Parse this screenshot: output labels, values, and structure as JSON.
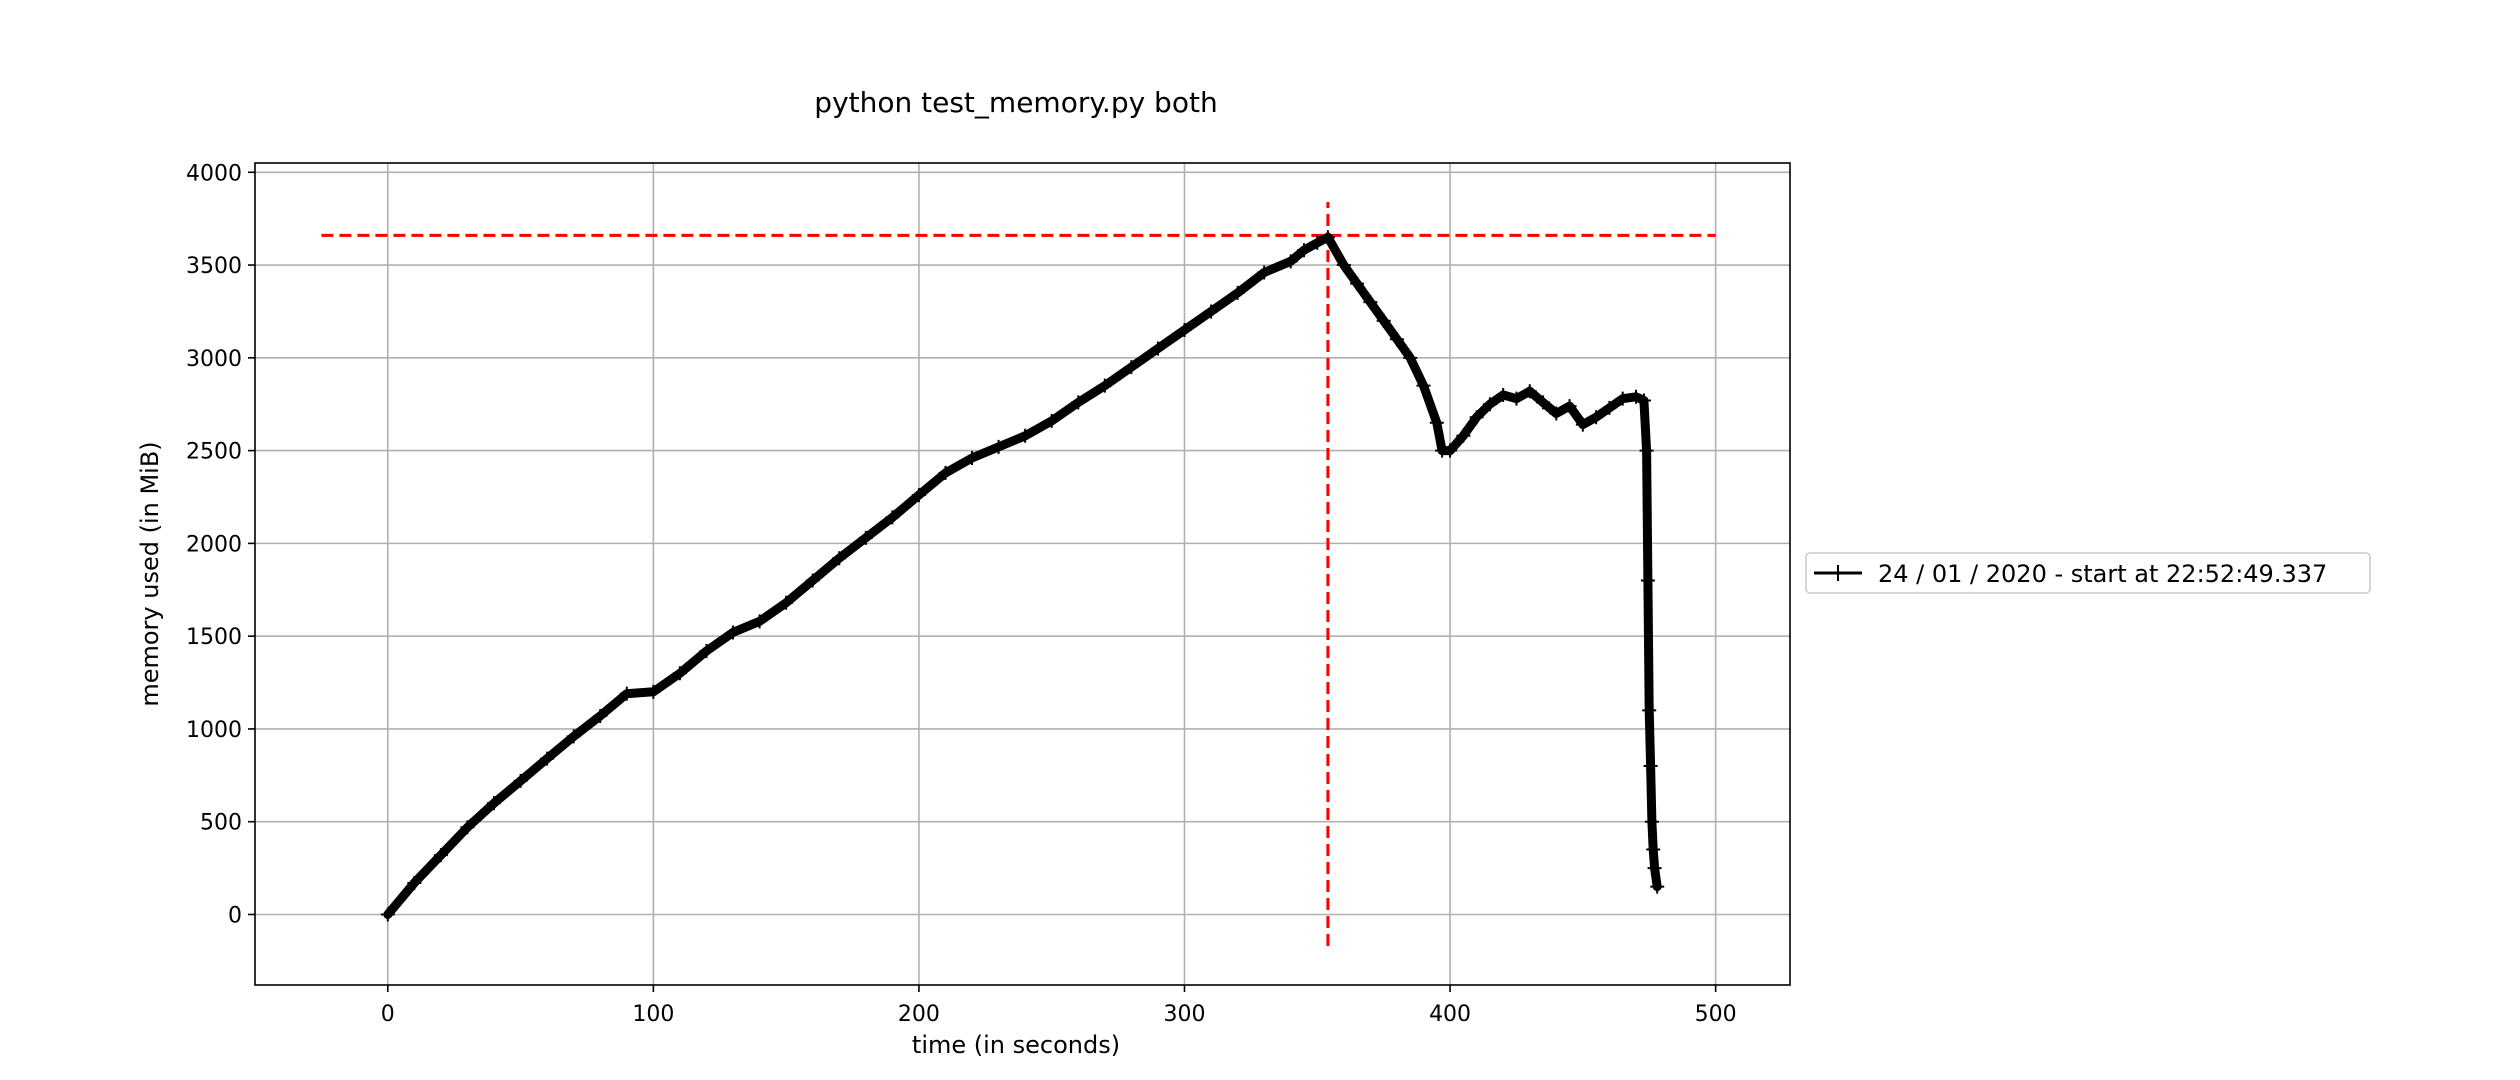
{
  "chart_data": {
    "type": "line",
    "title": "python test_memory.py both",
    "xlabel": "time (in seconds)",
    "ylabel": "memory used (in MiB)",
    "xlim": [
      -50,
      528
    ],
    "ylim": [
      -380,
      4050
    ],
    "x_ticks": [
      0,
      100,
      200,
      300,
      400,
      500
    ],
    "y_ticks": [
      0,
      500,
      1000,
      1500,
      2000,
      2500,
      3000,
      3500,
      4000
    ],
    "grid": true,
    "legend_position": "right",
    "colors": {
      "series": "#000000",
      "reference": "#ff0000",
      "grid": "#b0b0b0"
    },
    "series": [
      {
        "name": "24 / 01 / 2020 - start at 22:52:49.337",
        "marker": "+",
        "x": [
          0,
          10,
          20,
          30,
          40,
          50,
          60,
          70,
          80,
          90,
          100,
          110,
          120,
          130,
          140,
          150,
          160,
          170,
          180,
          190,
          200,
          210,
          220,
          230,
          240,
          250,
          260,
          270,
          280,
          290,
          300,
          310,
          320,
          330,
          340,
          345,
          350,
          354,
          360,
          365,
          370,
          375,
          380,
          385,
          390,
          395,
          397,
          400,
          405,
          410,
          415,
          420,
          425,
          430,
          435,
          440,
          445,
          450,
          455,
          460,
          465,
          470,
          473,
          474,
          474.5,
          475,
          475.5,
          476,
          476.5,
          477,
          478
        ],
        "y": [
          0,
          170,
          320,
          470,
          600,
          720,
          840,
          960,
          1070,
          1190,
          1200,
          1300,
          1420,
          1520,
          1580,
          1680,
          1800,
          1920,
          2030,
          2140,
          2260,
          2380,
          2460,
          2520,
          2580,
          2660,
          2760,
          2850,
          2950,
          3050,
          3150,
          3250,
          3350,
          3460,
          3520,
          3580,
          3620,
          3650,
          3500,
          3400,
          3300,
          3200,
          3100,
          3000,
          2850,
          2650,
          2500,
          2500,
          2580,
          2680,
          2750,
          2800,
          2780,
          2820,
          2760,
          2700,
          2740,
          2640,
          2680,
          2730,
          2780,
          2790,
          2770,
          2500,
          1800,
          1100,
          800,
          500,
          350,
          250,
          150
        ]
      }
    ],
    "reference_lines": [
      {
        "orientation": "horizontal",
        "value": 3660,
        "from": -25,
        "to": 500
      },
      {
        "orientation": "vertical",
        "value": 354,
        "from": -170,
        "to": 3840
      }
    ]
  }
}
